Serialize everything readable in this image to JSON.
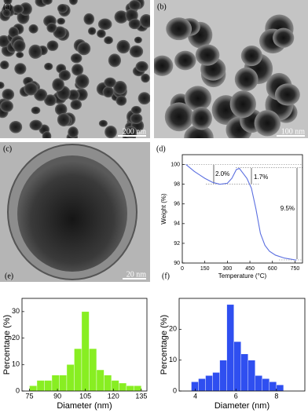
{
  "images": [
    {
      "panel_label": "(a)",
      "scale_bar": "200 nm"
    },
    {
      "panel_label": "(b)",
      "scale_bar": "100 nm"
    },
    {
      "panel_label": "(c)",
      "scale_bar": "20 nm"
    }
  ],
  "chart_data": [
    {
      "type": "line",
      "panel_label": "(d)",
      "xlabel": "Temperature (°C)",
      "ylabel": "Weight (%)",
      "x": [
        25,
        80,
        150,
        200,
        250,
        300,
        330,
        360,
        380,
        400,
        430,
        460,
        490,
        520,
        550,
        580,
        620,
        680,
        760
      ],
      "values": [
        100,
        99.3,
        98.6,
        98.2,
        98.0,
        98.1,
        98.6,
        99.5,
        99.6,
        99.2,
        98.6,
        97.6,
        95.5,
        93.0,
        91.8,
        91.2,
        90.8,
        90.5,
        90.3
      ],
      "color": "#5b6fe0",
      "xlim": [
        0,
        800
      ],
      "xticks": [
        0,
        150,
        300,
        450,
        600,
        750
      ],
      "ylim": [
        90,
        101
      ],
      "yticks": [
        90,
        92,
        94,
        96,
        98,
        100
      ],
      "annotations": [
        "2.0%",
        "1.7%",
        "9.5%"
      ]
    },
    {
      "type": "histogram",
      "panel_label": "(e)",
      "xlabel": "Diameter (nm)",
      "ylabel": "Percentage (%)",
      "bins": [
        75,
        79,
        83,
        87,
        91,
        95,
        99,
        103,
        107,
        111,
        115,
        119,
        123,
        127,
        131,
        135
      ],
      "values": [
        2,
        4,
        4,
        6,
        6,
        10,
        16,
        30,
        16,
        8,
        6,
        4,
        3,
        2,
        2
      ],
      "color": "#88ee22",
      "xlim": [
        71,
        138
      ],
      "xticks": [
        75,
        90,
        105,
        120,
        135
      ],
      "ylim": [
        0,
        35
      ],
      "yticks": [
        0,
        10,
        20,
        30
      ]
    },
    {
      "type": "histogram",
      "panel_label": "(f)",
      "xlabel": "Diameter (nm)",
      "ylabel": "Percentage (%)",
      "bins": [
        3.8,
        4.15,
        4.5,
        4.85,
        5.2,
        5.55,
        5.9,
        6.25,
        6.6,
        6.95,
        7.3,
        7.65,
        8.0,
        8.35
      ],
      "values": [
        3,
        4,
        5,
        6,
        10,
        28,
        16,
        12,
        10,
        5,
        4,
        3,
        2
      ],
      "color": "#2f4ff0",
      "xlim": [
        3.2,
        9.4
      ],
      "xticks": [
        4,
        6,
        8
      ],
      "ylim": [
        0,
        30
      ],
      "yticks": [
        0,
        10,
        20
      ]
    }
  ]
}
